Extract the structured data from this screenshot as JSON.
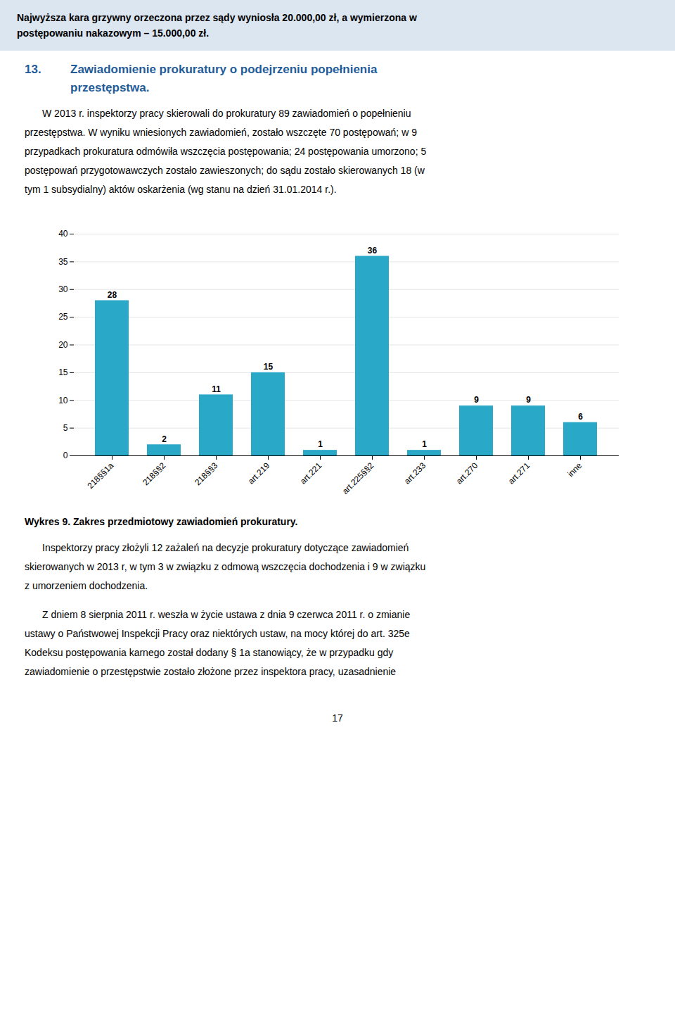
{
  "chart_data": {
    "type": "bar",
    "title": "Wykres 9. Zakres przedmiotowy zawiadomień prokuratury.",
    "categories": [
      "218§§1a",
      "218§§2",
      "218§§3",
      "art.219",
      "art.221",
      "art.225§§2",
      "art.233",
      "art.270",
      "art.271",
      "inne"
    ],
    "values": [
      28,
      2,
      11,
      15,
      1,
      36,
      1,
      9,
      9,
      6
    ],
    "color": "#29A8C8",
    "ylim": [
      0,
      40
    ],
    "yticks": [
      0,
      5,
      10,
      15,
      20,
      25,
      30,
      35,
      40
    ],
    "grid": true,
    "data_labels": true
  },
  "header_lines": [
    "Najwyższa kara grzywny orzeczona przez sądy wyniosła 20.000,00 zł, a wymierzona w",
    "postępowaniu nakazowym – 15.000,00 zł."
  ],
  "section_number": "13.",
  "section_title_lines": [
    "Zawiadomienie prokuratury o podejrzeniu popełnienia",
    "przestępstwa."
  ],
  "paragraphs_before": [
    [
      "W 2013 r. inspektorzy pracy skierowali do prokuratury 89 zawiadomień o popełnieniu",
      "przestępstwa. W wyniku wniesionych zawiadomień, zostało wszczęte 70 postępowań; w 9",
      "przypadkach prokuratura odmówiła wszczęcia postępowania; 24 postępowania umorzono; 5",
      "postępowań przygotowawczych zostało zawieszonych; do sądu zostało skierowanych 18 (w",
      "tym 1 subsydialny) aktów oskarżenia (wg stanu na dzień 31.01.2014 r.)."
    ]
  ],
  "paragraphs_after": [
    [
      "Inspektorzy pracy złożyli 12 zażaleń na decyzje prokuratury dotyczące zawiadomień",
      "skierowanych w 2013 r, w tym 3 w związku z odmową wszczęcia dochodzenia i 9 w związku",
      "z umorzeniem dochodzenia."
    ],
    [
      "Z dniem 8 sierpnia 2011 r. weszła w życie ustawa z dnia 9 czerwca 2011 r. o zmianie",
      "ustawy o Państwowej Inspekcji Pracy oraz niektórych ustaw, na mocy której do art. 325e",
      "Kodeksu postępowania karnego został dodany § 1a stanowiący, że w przypadku gdy",
      "zawiadomienie o przestępstwie zostało złożone przez inspektora pracy, uzasadnienie"
    ]
  ],
  "page_number": 17
}
